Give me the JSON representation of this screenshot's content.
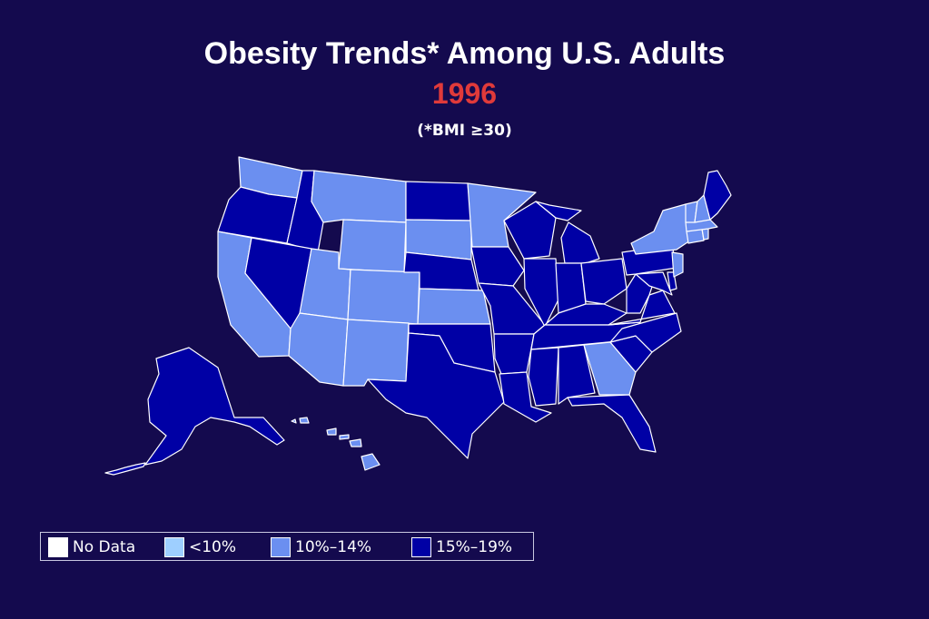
{
  "title": "Obesity Trends* Among U.S. Adults",
  "year": "1996",
  "subtitle": "(*BMI ≥30)",
  "colors": {
    "background": "#140a4e",
    "title": "#ffffff",
    "year": "#e03a3a",
    "no_data": "#ffffff",
    "lt10": "#9ecfff",
    "c10_14": "#6b8ff0",
    "c15_19": "#0000a5",
    "border": "#ffffff"
  },
  "legend": [
    {
      "key": "no_data",
      "label": "No Data"
    },
    {
      "key": "lt10",
      "label": "<10%"
    },
    {
      "key": "c10_14",
      "label": "10%–14%"
    },
    {
      "key": "c15_19",
      "label": "15%–19%"
    }
  ],
  "states": {
    "WA": "c10_14",
    "OR": "c15_19",
    "CA": "c10_14",
    "ID": "c15_19",
    "NV": "c15_19",
    "MT": "c10_14",
    "WY": "c10_14",
    "UT": "c10_14",
    "AZ": "c10_14",
    "CO": "c10_14",
    "NM": "c10_14",
    "ND": "c15_19",
    "SD": "c10_14",
    "NE": "c15_19",
    "KS": "c10_14",
    "OK": "c15_19",
    "TX": "c15_19",
    "MN": "c10_14",
    "IA": "c15_19",
    "MO": "c15_19",
    "AR": "c15_19",
    "LA": "c15_19",
    "WI": "c15_19",
    "IL": "c15_19",
    "MI": "c15_19",
    "IN": "c15_19",
    "OH": "c15_19",
    "KY": "c15_19",
    "TN": "c15_19",
    "MS": "c15_19",
    "AL": "c15_19",
    "GA": "c10_14",
    "FL": "c15_19",
    "SC": "c15_19",
    "NC": "c15_19",
    "VA": "c15_19",
    "WV": "c15_19",
    "MD": "c15_19",
    "DE": "c15_19",
    "PA": "c15_19",
    "NJ": "c10_14",
    "NY": "c10_14",
    "CT": "c10_14",
    "RI": "c10_14",
    "MA": "c10_14",
    "VT": "c10_14",
    "NH": "c10_14",
    "ME": "c15_19",
    "AK": "c15_19",
    "HI": "c10_14"
  }
}
